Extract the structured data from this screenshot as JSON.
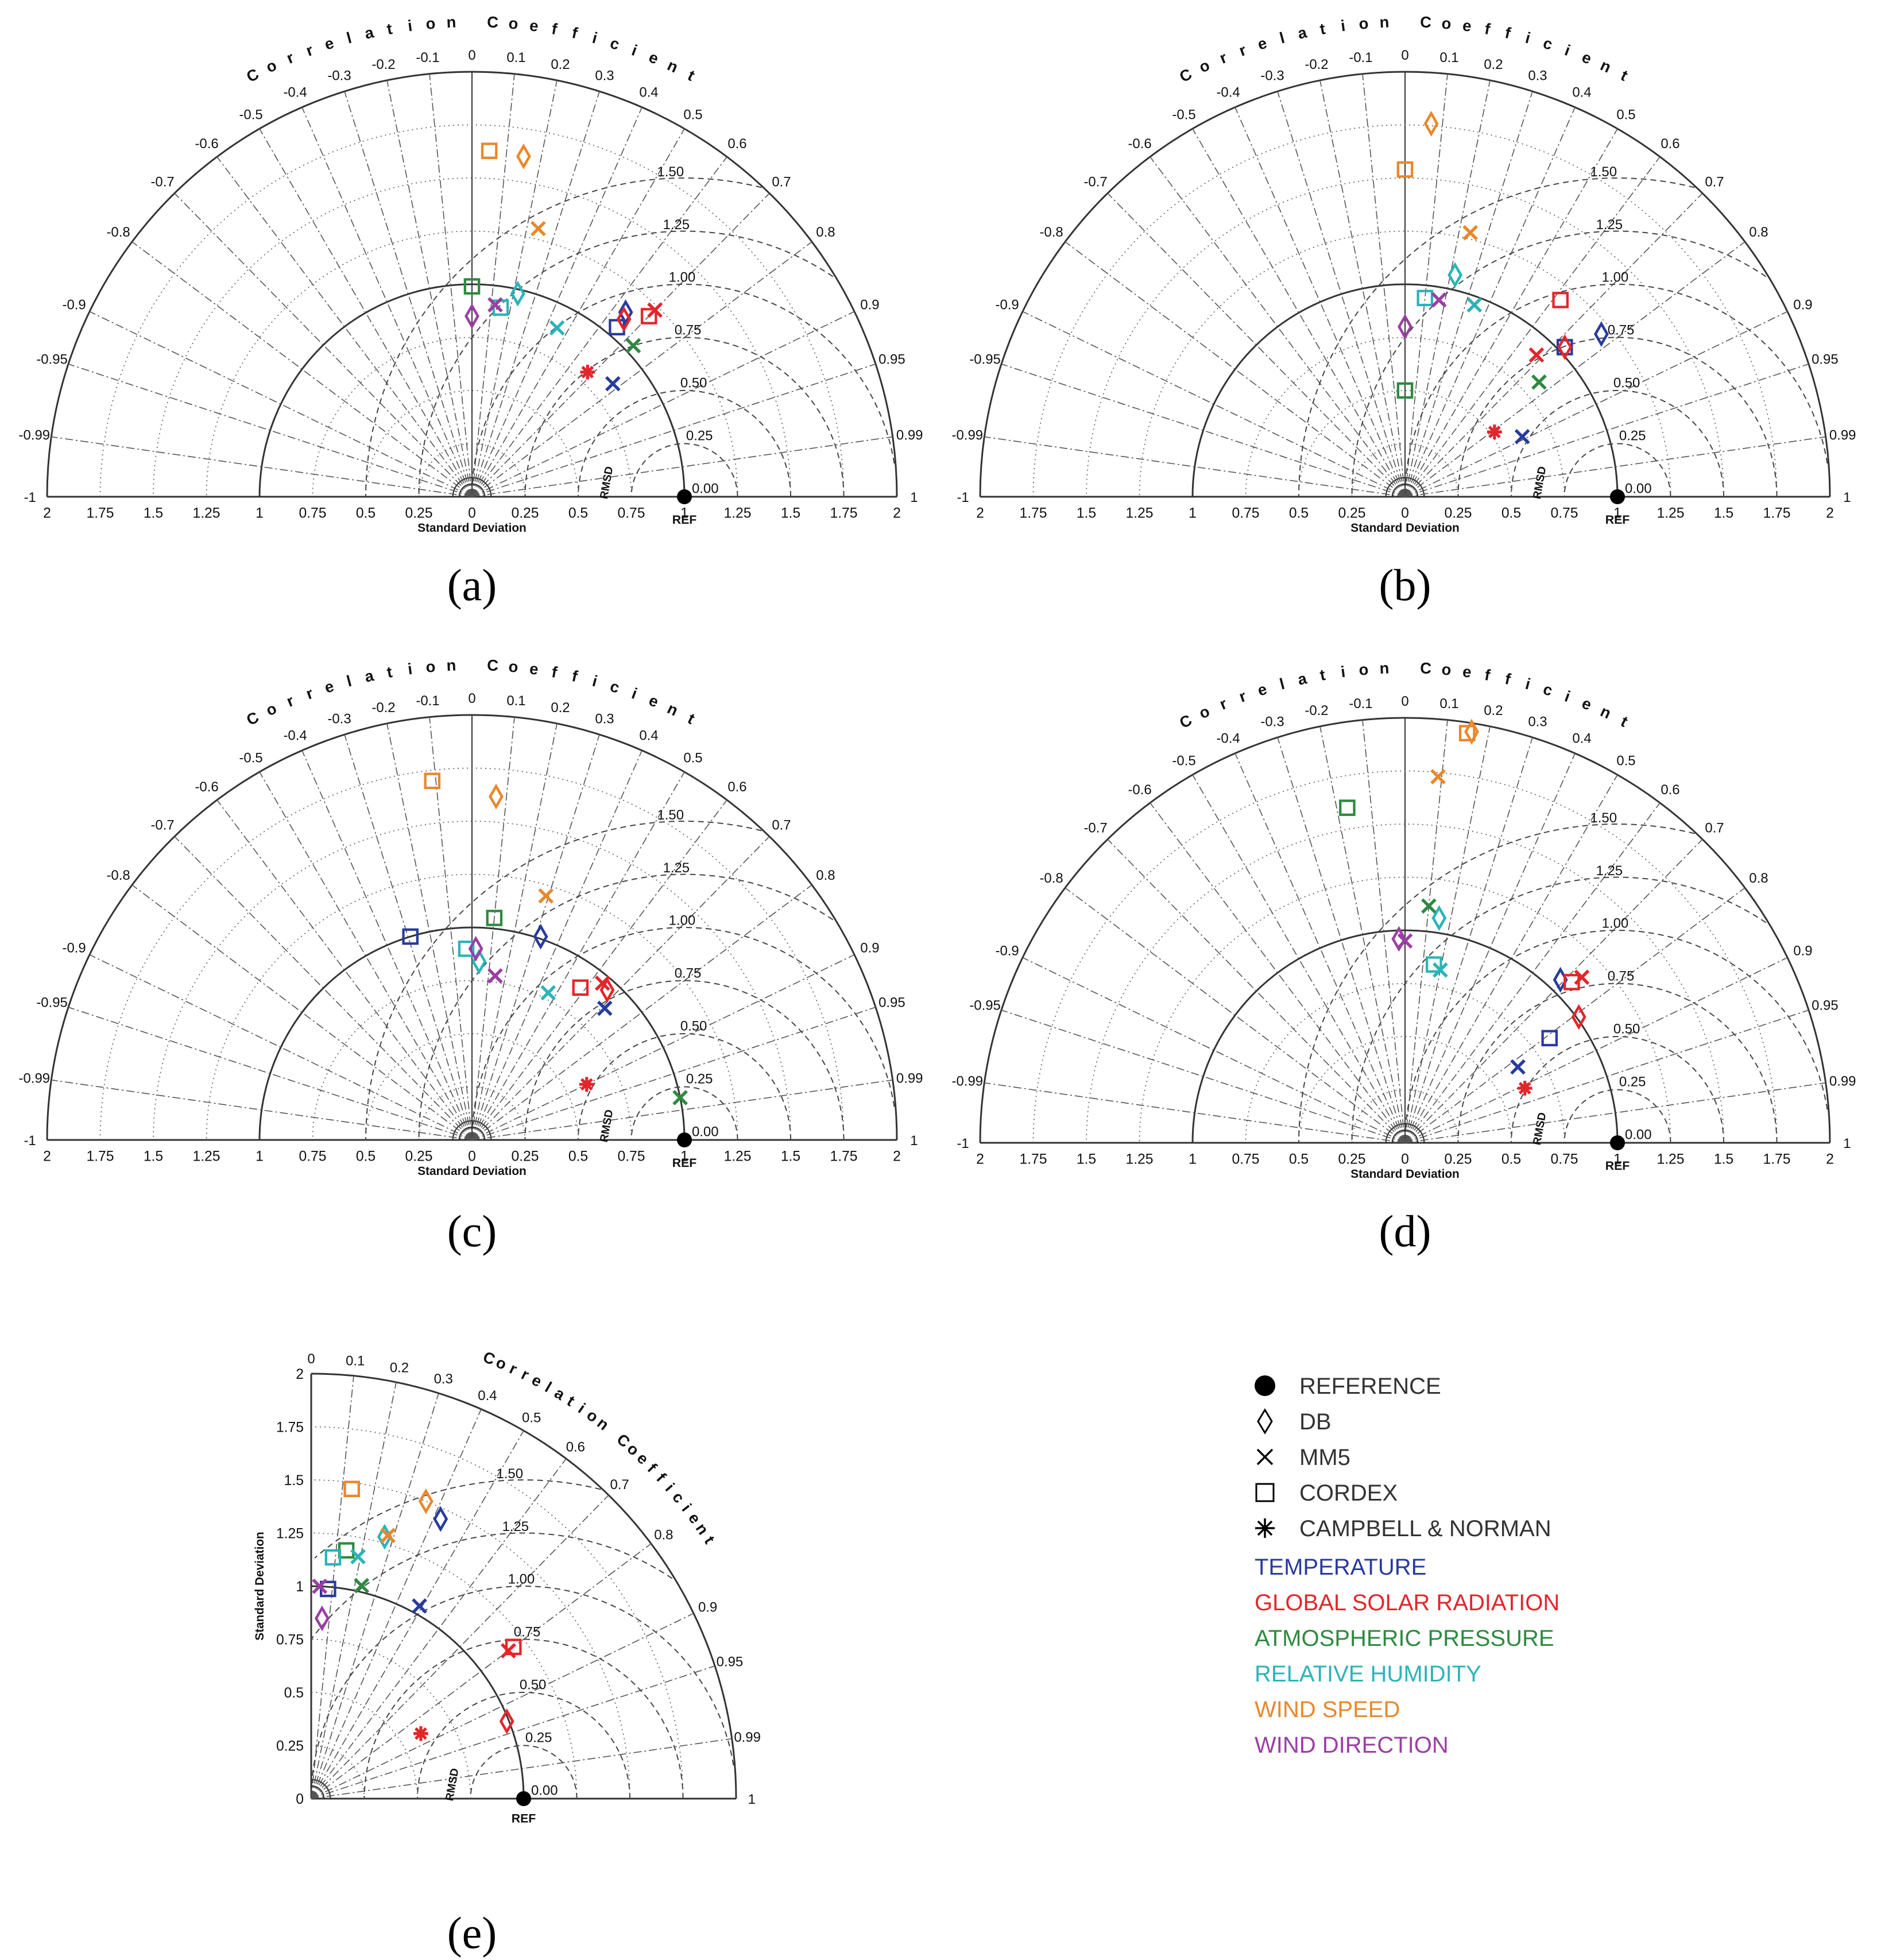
{
  "series_names": {
    "TEMPERATURE": "#283b9e",
    "GLOBAL SOLAR RADIATION": "#e3262b",
    "ATMOSPHERIC PRESSURE": "#2d8a3f",
    "RELATIVE HUMIDITY": "#2bb4b8",
    "WIND SPEED": "#e8882c",
    "WIND DIRECTION": "#9a3fa3"
  },
  "common_text": {
    "correlation_title": "Correlation Coefficient",
    "std_axis_label": "Standard Deviation",
    "ref_label": "REF",
    "rmsd_label": "RMSD",
    "std_ticks": [
      "0",
      "0.25",
      "0.5",
      "0.75",
      "1",
      "1.25",
      "1.5",
      "1.75",
      "2"
    ],
    "rmsd_ticks": [
      "0.00",
      "0.25",
      "0.50",
      "0.75",
      "1.00",
      "1.25",
      "1.50"
    ],
    "corr_ticks_full": [
      "-1",
      "-0.99",
      "-0.95",
      "-0.9",
      "-0.8",
      "-0.7",
      "-0.6",
      "-0.5",
      "-0.4",
      "-0.3",
      "-0.2",
      "-0.1",
      "0",
      "0.1",
      "0.2",
      "0.3",
      "0.4",
      "0.5",
      "0.6",
      "0.7",
      "0.8",
      "0.9",
      "0.95",
      "0.99",
      "1"
    ],
    "corr_ticks_quarter": [
      "0",
      "0.1",
      "0.2",
      "0.3",
      "0.4",
      "0.5",
      "0.6",
      "0.7",
      "0.8",
      "0.9",
      "0.95",
      "0.99",
      "1"
    ]
  },
  "legend": {
    "markers": [
      {
        "symbol": "dot",
        "label": "REFERENCE"
      },
      {
        "symbol": "diamond",
        "label": "DB"
      },
      {
        "symbol": "x",
        "label": "MM5"
      },
      {
        "symbol": "square",
        "label": "CORDEX"
      },
      {
        "symbol": "asterisk",
        "label": "CAMPBELL & NORMAN"
      }
    ],
    "series": [
      {
        "label": "TEMPERATURE",
        "color": "#283b9e"
      },
      {
        "label": "GLOBAL SOLAR RADIATION",
        "color": "#e3262b"
      },
      {
        "label": "ATMOSPHERIC PRESSURE",
        "color": "#2d8a3f"
      },
      {
        "label": "RELATIVE HUMIDITY",
        "color": "#2bb4b8"
      },
      {
        "label": "WIND SPEED",
        "color": "#e8882c"
      },
      {
        "label": "WIND DIRECTION",
        "color": "#9a3fa3"
      }
    ]
  },
  "chart_data": [
    {
      "panel": "(a)",
      "type": "scatter",
      "variant": "taylor-full",
      "reference": {
        "std": 1.0,
        "corr": 1.0
      },
      "points": [
        {
          "series": "TEMPERATURE",
          "model": "DB",
          "std": 1.13,
          "corr": 0.64
        },
        {
          "series": "TEMPERATURE",
          "model": "MM5",
          "std": 0.85,
          "corr": 0.78
        },
        {
          "series": "TEMPERATURE",
          "model": "CORDEX",
          "std": 1.05,
          "corr": 0.65
        },
        {
          "series": "GLOBAL SOLAR RADIATION",
          "model": "DB",
          "std": 1.1,
          "corr": 0.65
        },
        {
          "series": "GLOBAL SOLAR RADIATION",
          "model": "MM5",
          "std": 1.23,
          "corr": 0.7
        },
        {
          "series": "GLOBAL SOLAR RADIATION",
          "model": "CORDEX",
          "std": 1.19,
          "corr": 0.7
        },
        {
          "series": "GLOBAL SOLAR RADIATION",
          "model": "CAMPBELL & NORMAN",
          "std": 0.8,
          "corr": 0.68
        },
        {
          "series": "ATMOSPHERIC PRESSURE",
          "model": "MM5",
          "std": 1.04,
          "corr": 0.73
        },
        {
          "series": "ATMOSPHERIC PRESSURE",
          "model": "CORDEX",
          "std": 0.99,
          "corr": 0.0
        },
        {
          "series": "RELATIVE HUMIDITY",
          "model": "DB",
          "std": 0.98,
          "corr": 0.22
        },
        {
          "series": "RELATIVE HUMIDITY",
          "model": "MM5",
          "std": 0.89,
          "corr": 0.45
        },
        {
          "series": "RELATIVE HUMIDITY",
          "model": "CORDEX",
          "std": 0.9,
          "corr": 0.15
        },
        {
          "series": "WIND SPEED",
          "model": "DB",
          "std": 1.62,
          "corr": 0.15
        },
        {
          "series": "WIND SPEED",
          "model": "MM5",
          "std": 1.3,
          "corr": 0.24
        },
        {
          "series": "WIND SPEED",
          "model": "CORDEX",
          "std": 1.63,
          "corr": 0.05
        },
        {
          "series": "WIND DIRECTION",
          "model": "DB",
          "std": 0.85,
          "corr": 0.0
        },
        {
          "series": "WIND DIRECTION",
          "model": "MM5",
          "std": 0.91,
          "corr": 0.12
        }
      ]
    },
    {
      "panel": "(b)",
      "type": "scatter",
      "variant": "taylor-full",
      "reference": {
        "std": 1.0,
        "corr": 1.0
      },
      "points": [
        {
          "series": "TEMPERATURE",
          "model": "DB",
          "std": 1.2,
          "corr": 0.77
        },
        {
          "series": "TEMPERATURE",
          "model": "MM5",
          "std": 0.62,
          "corr": 0.89
        },
        {
          "series": "TEMPERATURE",
          "model": "CORDEX",
          "std": 1.03,
          "corr": 0.73
        },
        {
          "series": "GLOBAL SOLAR RADIATION",
          "model": "DB",
          "std": 1.03,
          "corr": 0.73
        },
        {
          "series": "GLOBAL SOLAR RADIATION",
          "model": "MM5",
          "std": 0.91,
          "corr": 0.68
        },
        {
          "series": "GLOBAL SOLAR RADIATION",
          "model": "CORDEX",
          "std": 1.18,
          "corr": 0.62
        },
        {
          "series": "GLOBAL SOLAR RADIATION",
          "model": "CAMPBELL & NORMAN",
          "std": 0.52,
          "corr": 0.81
        },
        {
          "series": "ATMOSPHERIC PRESSURE",
          "model": "MM5",
          "std": 0.83,
          "corr": 0.76
        },
        {
          "series": "ATMOSPHERIC PRESSURE",
          "model": "CORDEX",
          "std": 0.5,
          "corr": 0.0
        },
        {
          "series": "RELATIVE HUMIDITY",
          "model": "DB",
          "std": 1.07,
          "corr": 0.22
        },
        {
          "series": "RELATIVE HUMIDITY",
          "model": "MM5",
          "std": 0.96,
          "corr": 0.34
        },
        {
          "series": "RELATIVE HUMIDITY",
          "model": "CORDEX",
          "std": 0.94,
          "corr": 0.1
        },
        {
          "series": "WIND SPEED",
          "model": "DB",
          "std": 1.76,
          "corr": 0.07
        },
        {
          "series": "WIND SPEED",
          "model": "MM5",
          "std": 1.28,
          "corr": 0.24
        },
        {
          "series": "WIND SPEED",
          "model": "CORDEX",
          "std": 1.54,
          "corr": 0.0
        },
        {
          "series": "WIND DIRECTION",
          "model": "DB",
          "std": 0.8,
          "corr": 0.0
        },
        {
          "series": "WIND DIRECTION",
          "model": "MM5",
          "std": 0.94,
          "corr": 0.17
        }
      ]
    },
    {
      "panel": "(c)",
      "type": "scatter",
      "variant": "taylor-full",
      "reference": {
        "std": 1.0,
        "corr": 1.0
      },
      "points": [
        {
          "series": "TEMPERATURE",
          "model": "DB",
          "std": 1.01,
          "corr": 0.32
        },
        {
          "series": "TEMPERATURE",
          "model": "MM5",
          "std": 0.88,
          "corr": 0.71
        },
        {
          "series": "TEMPERATURE",
          "model": "CORDEX",
          "std": 1.0,
          "corr": -0.29
        },
        {
          "series": "GLOBAL SOLAR RADIATION",
          "model": "DB",
          "std": 0.95,
          "corr": 0.67
        },
        {
          "series": "GLOBAL SOLAR RADIATION",
          "model": "MM5",
          "std": 0.96,
          "corr": 0.64
        },
        {
          "series": "GLOBAL SOLAR RADIATION",
          "model": "CORDEX",
          "std": 0.88,
          "corr": 0.58
        },
        {
          "series": "GLOBAL SOLAR RADIATION",
          "model": "CAMPBELL & NORMAN",
          "std": 0.6,
          "corr": 0.9
        },
        {
          "series": "ATMOSPHERIC PRESSURE",
          "model": "MM5",
          "std": 1.0,
          "corr": 0.98
        },
        {
          "series": "ATMOSPHERIC PRESSURE",
          "model": "CORDEX",
          "std": 1.05,
          "corr": 0.1
        },
        {
          "series": "RELATIVE HUMIDITY",
          "model": "DB",
          "std": 0.84,
          "corr": 0.04
        },
        {
          "series": "RELATIVE HUMIDITY",
          "model": "MM5",
          "std": 0.78,
          "corr": 0.46
        },
        {
          "series": "RELATIVE HUMIDITY",
          "model": "CORDEX",
          "std": 0.9,
          "corr": -0.03
        },
        {
          "series": "WIND SPEED",
          "model": "DB",
          "std": 1.62,
          "corr": 0.07
        },
        {
          "series": "WIND SPEED",
          "model": "MM5",
          "std": 1.2,
          "corr": 0.29
        },
        {
          "series": "WIND SPEED",
          "model": "CORDEX",
          "std": 1.7,
          "corr": -0.11
        },
        {
          "series": "WIND DIRECTION",
          "model": "DB",
          "std": 0.9,
          "corr": 0.02
        },
        {
          "series": "WIND DIRECTION",
          "model": "MM5",
          "std": 0.78,
          "corr": 0.14
        }
      ]
    },
    {
      "panel": "(d)",
      "type": "scatter",
      "variant": "taylor-full",
      "reference": {
        "std": 1.0,
        "corr": 1.0
      },
      "points": [
        {
          "series": "TEMPERATURE",
          "model": "DB",
          "std": 1.06,
          "corr": 0.69
        },
        {
          "series": "TEMPERATURE",
          "model": "MM5",
          "std": 0.64,
          "corr": 0.83
        },
        {
          "series": "TEMPERATURE",
          "model": "CORDEX",
          "std": 0.84,
          "corr": 0.81
        },
        {
          "series": "GLOBAL SOLAR RADIATION",
          "model": "DB",
          "std": 1.01,
          "corr": 0.81
        },
        {
          "series": "GLOBAL SOLAR RADIATION",
          "model": "MM5",
          "std": 1.14,
          "corr": 0.73
        },
        {
          "series": "GLOBAL SOLAR RADIATION",
          "model": "CORDEX",
          "std": 1.09,
          "corr": 0.72
        },
        {
          "series": "GLOBAL SOLAR RADIATION",
          "model": "CAMPBELL & NORMAN",
          "std": 0.62,
          "corr": 0.91
        },
        {
          "series": "ATMOSPHERIC PRESSURE",
          "model": "MM5",
          "std": 1.12,
          "corr": 0.1
        },
        {
          "series": "ATMOSPHERIC PRESSURE",
          "model": "CORDEX",
          "std": 1.6,
          "corr": -0.17
        },
        {
          "series": "RELATIVE HUMIDITY",
          "model": "DB",
          "std": 1.07,
          "corr": 0.15
        },
        {
          "series": "RELATIVE HUMIDITY",
          "model": "MM5",
          "std": 0.83,
          "corr": 0.2
        },
        {
          "series": "RELATIVE HUMIDITY",
          "model": "CORDEX",
          "std": 0.85,
          "corr": 0.16
        },
        {
          "series": "WIND SPEED",
          "model": "DB",
          "std": 1.96,
          "corr": 0.16
        },
        {
          "series": "WIND SPEED",
          "model": "MM5",
          "std": 1.73,
          "corr": 0.09
        },
        {
          "series": "WIND SPEED",
          "model": "CORDEX",
          "std": 1.95,
          "corr": 0.15
        },
        {
          "series": "WIND DIRECTION",
          "model": "DB",
          "std": 0.96,
          "corr": -0.03
        },
        {
          "series": "WIND DIRECTION",
          "model": "MM5",
          "std": 0.95,
          "corr": 0.0
        }
      ]
    },
    {
      "panel": "(e)",
      "type": "scatter",
      "variant": "taylor-quarter",
      "reference": {
        "std": 1.0,
        "corr": 1.0
      },
      "points": [
        {
          "series": "TEMPERATURE",
          "model": "DB",
          "std": 1.45,
          "corr": 0.42
        },
        {
          "series": "TEMPERATURE",
          "model": "MM5",
          "std": 1.04,
          "corr": 0.49
        },
        {
          "series": "TEMPERATURE",
          "model": "CORDEX",
          "std": 0.99,
          "corr": 0.08
        },
        {
          "series": "GLOBAL SOLAR RADIATION",
          "model": "DB",
          "std": 0.99,
          "corr": 0.93
        },
        {
          "series": "GLOBAL SOLAR RADIATION",
          "model": "MM5",
          "std": 1.16,
          "corr": 0.8
        },
        {
          "series": "GLOBAL SOLAR RADIATION",
          "model": "CORDEX",
          "std": 1.19,
          "corr": 0.8
        },
        {
          "series": "GLOBAL SOLAR RADIATION",
          "model": "CAMPBELL & NORMAN",
          "std": 0.6,
          "corr": 0.86
        },
        {
          "series": "ATMOSPHERIC PRESSURE",
          "model": "MM5",
          "std": 1.03,
          "corr": 0.23
        },
        {
          "series": "ATMOSPHERIC PRESSURE",
          "model": "CORDEX",
          "std": 1.18,
          "corr": 0.14
        },
        {
          "series": "RELATIVE HUMIDITY",
          "model": "DB",
          "std": 1.28,
          "corr": 0.27
        },
        {
          "series": "RELATIVE HUMIDITY",
          "model": "MM5",
          "std": 1.16,
          "corr": 0.19
        },
        {
          "series": "RELATIVE HUMIDITY",
          "model": "CORDEX",
          "std": 1.14,
          "corr": 0.09
        },
        {
          "series": "WIND SPEED",
          "model": "DB",
          "std": 1.5,
          "corr": 0.36
        },
        {
          "series": "WIND SPEED",
          "model": "MM5",
          "std": 1.29,
          "corr": 0.28
        },
        {
          "series": "WIND SPEED",
          "model": "CORDEX",
          "std": 1.47,
          "corr": 0.13
        },
        {
          "series": "WIND DIRECTION",
          "model": "DB",
          "std": 0.85,
          "corr": 0.06
        },
        {
          "series": "WIND DIRECTION",
          "model": "MM5",
          "std": 1.0,
          "corr": 0.04
        }
      ]
    }
  ]
}
